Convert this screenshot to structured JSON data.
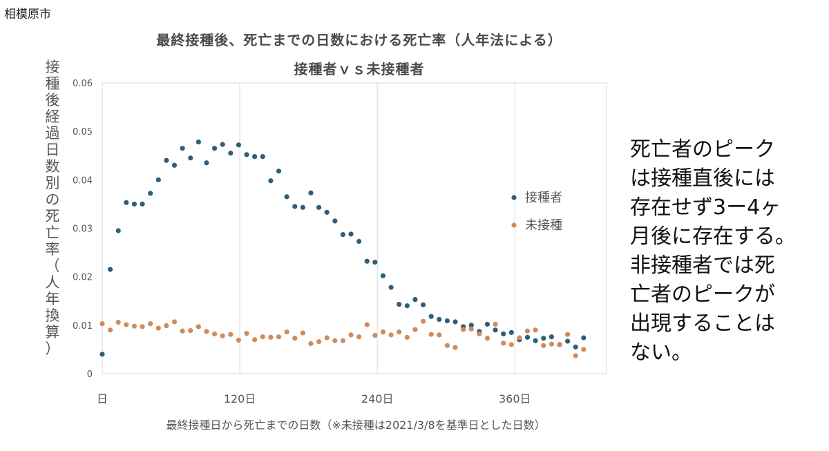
{
  "header": {
    "city": "相模原市"
  },
  "side_note": {
    "lines": [
      "死亡者のピーク",
      "は接種直後には",
      "存在せず3ー4ヶ",
      "月後に存在する。",
      "非接種者では死",
      "亡者のピークが",
      "出現することは",
      "ない。"
    ]
  },
  "chart_data": {
    "type": "scatter",
    "title": "最終接種後、死亡までの日数における死亡率（人年法による）",
    "subtitle": "接種者ｖｓ未接種者",
    "ylabel_chars": [
      "接",
      "種",
      "後",
      "経",
      "過",
      "日",
      "数",
      "別",
      "の",
      "死",
      "亡",
      "率",
      "（",
      "人",
      "年",
      "換",
      "算",
      "）"
    ],
    "xlabel": "最終接種日から死亡までの日数（※未接種は2021/3/8を基準日とした日数）",
    "xlim": [
      0,
      440
    ],
    "ylim": [
      0,
      0.06
    ],
    "x_ticks": [
      {
        "value": 0,
        "label": "日"
      },
      {
        "value": 120,
        "label": "120日"
      },
      {
        "value": 240,
        "label": "240日"
      },
      {
        "value": 360,
        "label": "360日"
      }
    ],
    "y_ticks": [
      {
        "value": 0,
        "label": "0"
      },
      {
        "value": 0.01,
        "label": "0.01"
      },
      {
        "value": 0.02,
        "label": "0.02"
      },
      {
        "value": 0.03,
        "label": "0.03"
      },
      {
        "value": 0.04,
        "label": "0.04"
      },
      {
        "value": 0.05,
        "label": "0.05"
      },
      {
        "value": 0.06,
        "label": "0.06"
      }
    ],
    "grid": "vertical",
    "legend_position": "right",
    "series": [
      {
        "name": "接種者",
        "color": "#2e5f7a",
        "points": [
          [
            0,
            0.004
          ],
          [
            7,
            0.0215
          ],
          [
            14,
            0.0295
          ],
          [
            21,
            0.0353
          ],
          [
            28,
            0.035
          ],
          [
            35,
            0.035
          ],
          [
            42,
            0.0372
          ],
          [
            49,
            0.04
          ],
          [
            56,
            0.044
          ],
          [
            63,
            0.043
          ],
          [
            70,
            0.0465
          ],
          [
            77,
            0.0445
          ],
          [
            84,
            0.0478
          ],
          [
            91,
            0.0435
          ],
          [
            98,
            0.0465
          ],
          [
            105,
            0.0473
          ],
          [
            112,
            0.0455
          ],
          [
            119,
            0.0472
          ],
          [
            126,
            0.0452
          ],
          [
            133,
            0.0448
          ],
          [
            140,
            0.0448
          ],
          [
            147,
            0.0398
          ],
          [
            154,
            0.0418
          ],
          [
            161,
            0.0365
          ],
          [
            168,
            0.0345
          ],
          [
            175,
            0.0343
          ],
          [
            182,
            0.0373
          ],
          [
            189,
            0.0343
          ],
          [
            196,
            0.0333
          ],
          [
            203,
            0.0315
          ],
          [
            210,
            0.0287
          ],
          [
            217,
            0.0288
          ],
          [
            224,
            0.0273
          ],
          [
            231,
            0.0232
          ],
          [
            238,
            0.023
          ],
          [
            245,
            0.0202
          ],
          [
            252,
            0.0178
          ],
          [
            259,
            0.0143
          ],
          [
            266,
            0.014
          ],
          [
            273,
            0.0153
          ],
          [
            280,
            0.0142
          ],
          [
            287,
            0.0118
          ],
          [
            294,
            0.0112
          ],
          [
            301,
            0.0109
          ],
          [
            308,
            0.0107
          ],
          [
            315,
            0.0097
          ],
          [
            322,
            0.01
          ],
          [
            329,
            0.0087
          ],
          [
            336,
            0.0102
          ],
          [
            343,
            0.009
          ],
          [
            350,
            0.0082
          ],
          [
            357,
            0.0085
          ],
          [
            364,
            0.007
          ],
          [
            371,
            0.0075
          ],
          [
            378,
            0.0068
          ],
          [
            385,
            0.0073
          ],
          [
            392,
            0.0076
          ],
          [
            399,
            0.006
          ],
          [
            406,
            0.0067
          ],
          [
            413,
            0.0055
          ],
          [
            420,
            0.0074
          ]
        ]
      },
      {
        "name": "未接種",
        "color": "#d08a5c",
        "points": [
          [
            0,
            0.0103
          ],
          [
            7,
            0.009
          ],
          [
            14,
            0.0106
          ],
          [
            21,
            0.0101
          ],
          [
            28,
            0.0098
          ],
          [
            35,
            0.0097
          ],
          [
            42,
            0.0103
          ],
          [
            49,
            0.0094
          ],
          [
            56,
            0.0099
          ],
          [
            63,
            0.0107
          ],
          [
            70,
            0.0088
          ],
          [
            77,
            0.0089
          ],
          [
            84,
            0.0097
          ],
          [
            91,
            0.0087
          ],
          [
            98,
            0.0082
          ],
          [
            105,
            0.0078
          ],
          [
            112,
            0.0081
          ],
          [
            119,
            0.0069
          ],
          [
            126,
            0.0083
          ],
          [
            133,
            0.007
          ],
          [
            140,
            0.0076
          ],
          [
            147,
            0.0075
          ],
          [
            154,
            0.0076
          ],
          [
            161,
            0.0086
          ],
          [
            168,
            0.0073
          ],
          [
            175,
            0.0084
          ],
          [
            182,
            0.0062
          ],
          [
            189,
            0.0066
          ],
          [
            196,
            0.0074
          ],
          [
            203,
            0.0068
          ],
          [
            210,
            0.0068
          ],
          [
            217,
            0.008
          ],
          [
            224,
            0.0076
          ],
          [
            231,
            0.0101
          ],
          [
            238,
            0.0079
          ],
          [
            245,
            0.0086
          ],
          [
            252,
            0.008
          ],
          [
            259,
            0.0086
          ],
          [
            266,
            0.0075
          ],
          [
            273,
            0.0091
          ],
          [
            280,
            0.0108
          ],
          [
            287,
            0.0081
          ],
          [
            294,
            0.008
          ],
          [
            301,
            0.0058
          ],
          [
            308,
            0.0054
          ],
          [
            315,
            0.0091
          ],
          [
            322,
            0.0092
          ],
          [
            329,
            0.0082
          ],
          [
            336,
            0.0073
          ],
          [
            343,
            0.0102
          ],
          [
            350,
            0.0063
          ],
          [
            357,
            0.006
          ],
          [
            364,
            0.0074
          ],
          [
            371,
            0.0088
          ],
          [
            378,
            0.009
          ],
          [
            385,
            0.0058
          ],
          [
            392,
            0.0061
          ],
          [
            399,
            0.006
          ],
          [
            406,
            0.0081
          ],
          [
            413,
            0.0037
          ],
          [
            420,
            0.005
          ]
        ]
      }
    ]
  }
}
